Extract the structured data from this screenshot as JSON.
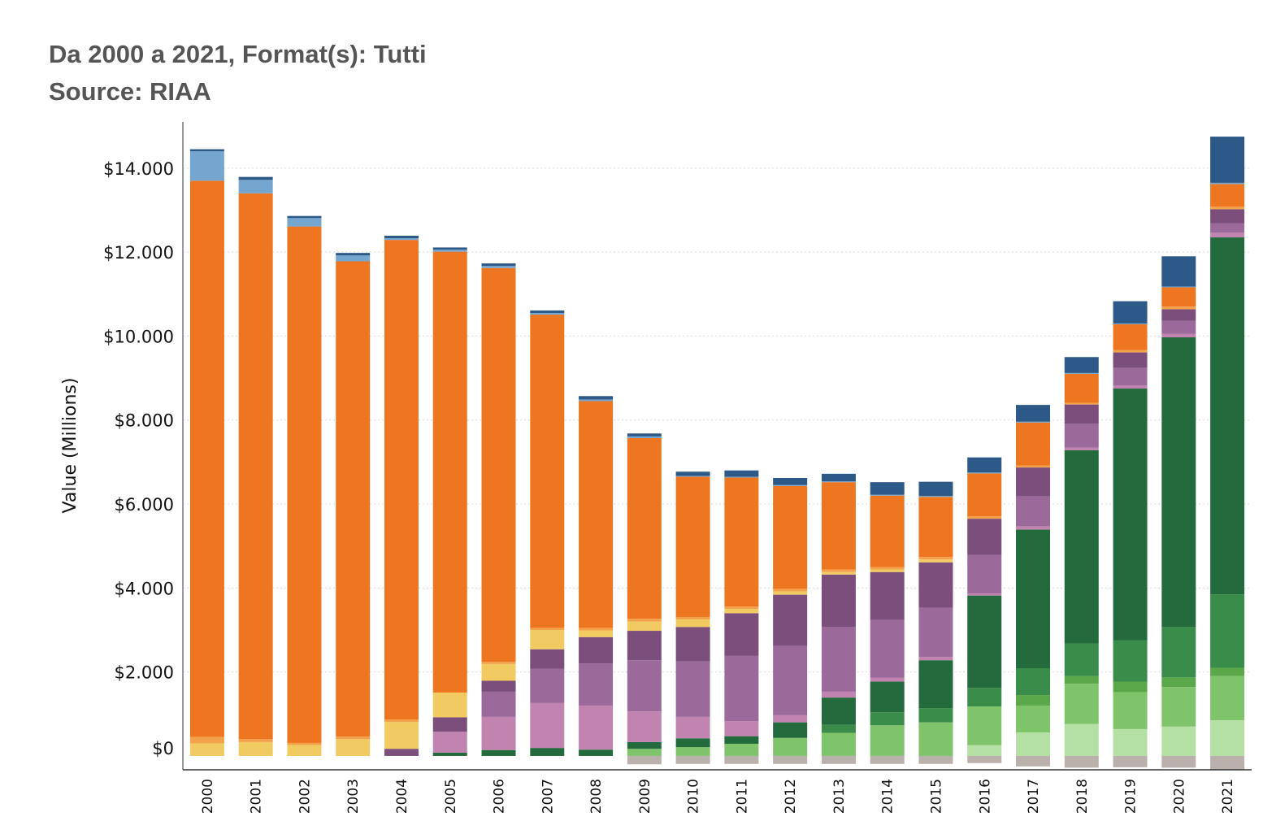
{
  "chart_data": {
    "type": "bar",
    "stacked": true,
    "title": "Da 2000 a 2021, Format(s): Tutti",
    "subtitle": "Source: RIAA",
    "xlabel": "",
    "ylabel": "Value (Millions)",
    "ylim": [
      -330,
      15100
    ],
    "yticks": [
      {
        "value": 0,
        "label": "$0"
      },
      {
        "value": 2000,
        "label": "$2.000"
      },
      {
        "value": 4000,
        "label": "$4.000"
      },
      {
        "value": 6000,
        "label": "$6.000"
      },
      {
        "value": 8000,
        "label": "$8.000"
      },
      {
        "value": 10000,
        "label": "$10.000"
      },
      {
        "value": 12000,
        "label": "$12.000"
      },
      {
        "value": 14000,
        "label": "$14.000"
      }
    ],
    "grid": true,
    "categories": [
      "2000",
      "2001",
      "2002",
      "2003",
      "2004",
      "2005",
      "2006",
      "2007",
      "2008",
      "2009",
      "2010",
      "2011",
      "2012",
      "2013",
      "2014",
      "2015",
      "2016",
      "2017",
      "2018",
      "2019",
      "2020",
      "2021"
    ],
    "series": [
      {
        "color": "#bab0ac",
        "values": [
          0,
          0,
          0,
          0,
          0,
          0,
          0,
          0,
          0,
          0,
          0,
          0,
          0,
          0,
          0,
          0,
          0,
          0,
          0,
          0,
          0,
          0
        ],
        "base_values": [
          0,
          0,
          0,
          0,
          0,
          0,
          0,
          0,
          0,
          200,
          190,
          190,
          190,
          190,
          190,
          190,
          170,
          250,
          280,
          270,
          280,
          330
        ]
      },
      {
        "color": "#d7d2cf",
        "values": [
          0,
          0,
          0,
          0,
          0,
          0,
          0,
          0,
          0,
          0,
          0,
          0,
          0,
          0,
          0,
          0,
          0,
          0,
          0,
          0,
          0,
          0
        ]
      },
      {
        "color": "#b5e0a3",
        "values": [
          0,
          0,
          0,
          0,
          0,
          0,
          0,
          0,
          0,
          0,
          0,
          0,
          0,
          0,
          0,
          0,
          260,
          560,
          760,
          640,
          700,
          850
        ]
      },
      {
        "color": "#7fc36b",
        "values": [
          0,
          0,
          0,
          0,
          0,
          0,
          0,
          0,
          0,
          170,
          210,
          290,
          430,
          550,
          730,
          800,
          920,
          640,
          960,
          880,
          940,
          1050
        ]
      },
      {
        "color": "#5ba84a",
        "values": [
          0,
          0,
          0,
          0,
          0,
          0,
          0,
          0,
          0,
          0,
          0,
          0,
          0,
          0,
          0,
          0,
          0,
          250,
          180,
          250,
          230,
          200
        ]
      },
      {
        "color": "#3a8c4a",
        "values": [
          0,
          0,
          0,
          0,
          0,
          0,
          0,
          0,
          0,
          0,
          0,
          0,
          0,
          190,
          310,
          340,
          440,
          640,
          780,
          980,
          1200,
          1750
        ]
      },
      {
        "color": "#236b3d",
        "values": [
          0,
          0,
          0,
          0,
          0,
          80,
          140,
          190,
          150,
          160,
          210,
          180,
          370,
          650,
          730,
          1140,
          2200,
          3300,
          4600,
          6000,
          6900,
          8500
        ]
      },
      {
        "color": "#f4a8c0",
        "values": [
          0,
          0,
          0,
          0,
          0,
          0,
          0,
          0,
          0,
          0,
          0,
          0,
          0,
          0,
          0,
          0,
          0,
          0,
          0,
          0,
          0,
          0
        ]
      },
      {
        "color": "#c184b0",
        "values": [
          0,
          0,
          0,
          0,
          0,
          500,
          790,
          1070,
          1050,
          730,
          510,
          360,
          170,
          140,
          90,
          80,
          50,
          80,
          60,
          70,
          80,
          110
        ]
      },
      {
        "color": "#9b6a9b",
        "values": [
          0,
          0,
          0,
          0,
          0,
          0,
          600,
          820,
          1000,
          1220,
          1320,
          1560,
          1650,
          1540,
          1380,
          1170,
          920,
          710,
          570,
          420,
          310,
          230
        ]
      },
      {
        "color": "#7b4e7b",
        "values": [
          0,
          0,
          0,
          0,
          170,
          340,
          260,
          460,
          630,
          700,
          820,
          1010,
          1220,
          1250,
          1140,
          1080,
          860,
          690,
          460,
          370,
          280,
          330
        ]
      },
      {
        "color": "#f1ca62",
        "values": [
          300,
          330,
          260,
          400,
          640,
          590,
          400,
          460,
          160,
          220,
          180,
          100,
          80,
          60,
          60,
          70,
          0,
          0,
          0,
          0,
          0,
          0
        ]
      },
      {
        "color": "#f4a14b",
        "values": [
          150,
          70,
          50,
          60,
          60,
          0,
          50,
          50,
          60,
          70,
          60,
          60,
          60,
          60,
          60,
          60,
          60,
          50,
          40,
          60,
          60,
          60
        ]
      },
      {
        "color": "#ee7621",
        "values": [
          13250,
          13000,
          12300,
          11320,
          11420,
          10500,
          9380,
          7460,
          5400,
          4300,
          3340,
          3070,
          2450,
          2080,
          1700,
          1430,
          1020,
          1020,
          690,
          610,
          460,
          540
        ]
      },
      {
        "color": "#f3b24d",
        "values": [
          0,
          0,
          0,
          0,
          0,
          0,
          0,
          0,
          0,
          0,
          0,
          0,
          0,
          0,
          0,
          0,
          0,
          0,
          0,
          0,
          0,
          0
        ]
      },
      {
        "color": "#74a6cf",
        "values": [
          700,
          320,
          200,
          140,
          40,
          50,
          50,
          40,
          40,
          40,
          20,
          20,
          20,
          20,
          20,
          20,
          20,
          20,
          20,
          20,
          20,
          30
        ]
      },
      {
        "color": "#2c5987",
        "values": [
          50,
          70,
          50,
          60,
          60,
          50,
          60,
          60,
          80,
          70,
          100,
          150,
          170,
          180,
          300,
          340,
          360,
          400,
          380,
          530,
          720,
          1100
        ]
      }
    ]
  }
}
